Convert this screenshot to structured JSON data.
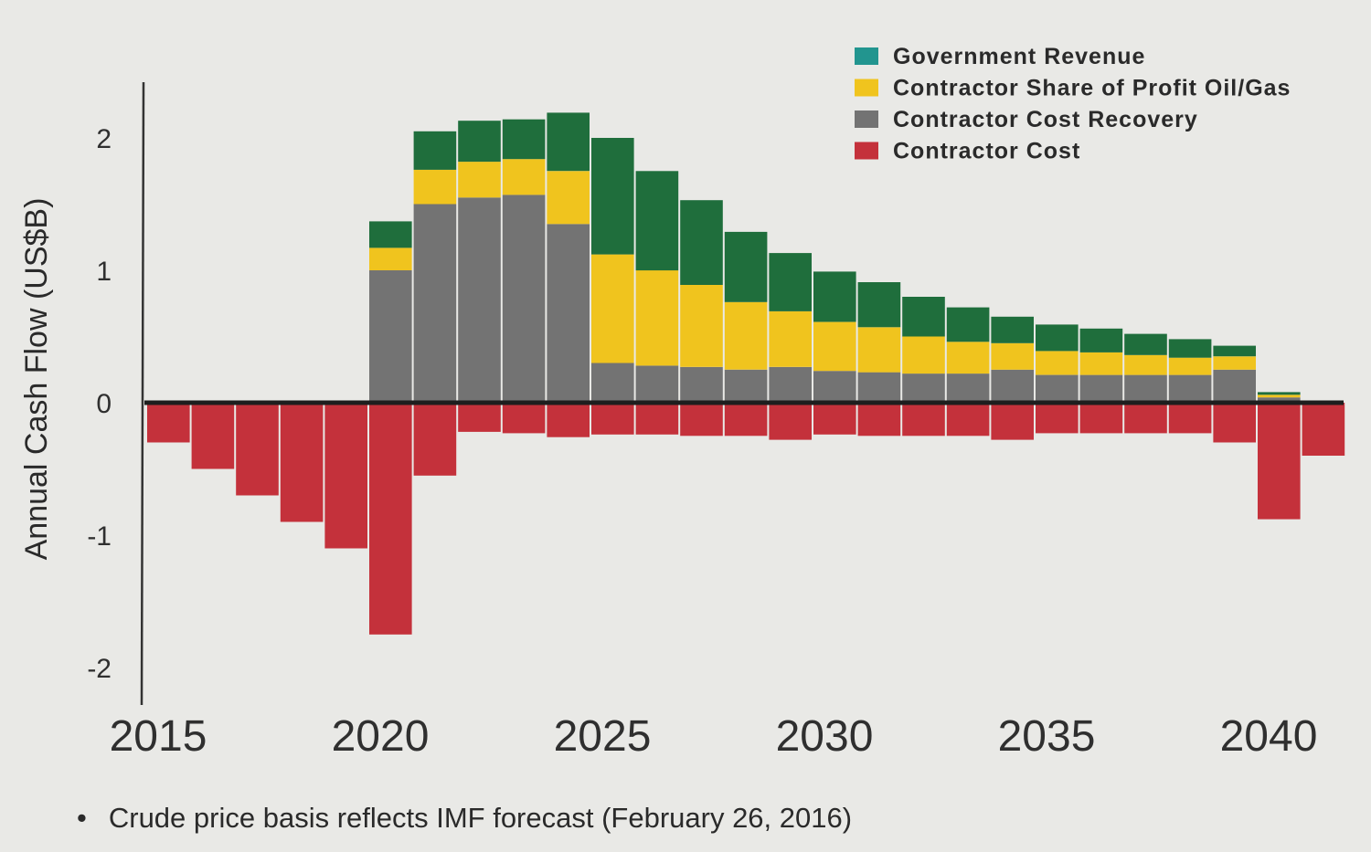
{
  "footnote": {
    "bullet": "•",
    "text": "Crude price basis reflects IMF forecast (February 26, 2016)"
  },
  "colors": {
    "Government Revenue": "#1f6e3c",
    "Contractor Share of Profit Oil/Gas": "#f0c41e",
    "Contractor Cost Recovery": "#737373",
    "Contractor Cost": "#c4313b",
    "legend_government_swatch": "#22958f"
  },
  "chart_data": {
    "type": "bar",
    "stacked": true,
    "title": "",
    "ylabel": "Annual Cash Flow (US$B)",
    "xlabel": "",
    "ylim": [
      -2.2,
      2.4
    ],
    "yticks": [
      "-2",
      "-1",
      "0",
      "1",
      "2"
    ],
    "xticks": [
      "2015",
      "2020",
      "2025",
      "2030",
      "2035",
      "2040"
    ],
    "legend_position": "top-right",
    "grid": false,
    "categories": [
      2015,
      2016,
      2017,
      2018,
      2019,
      2020,
      2021,
      2022,
      2023,
      2024,
      2025,
      2026,
      2027,
      2028,
      2029,
      2030,
      2031,
      2032,
      2033,
      2034,
      2035,
      2036,
      2037,
      2038,
      2039,
      2040,
      2041
    ],
    "series": [
      {
        "name": "Contractor Cost Recovery",
        "values": [
          0,
          0,
          0,
          0,
          0,
          1.0,
          1.5,
          1.55,
          1.57,
          1.35,
          0.3,
          0.28,
          0.27,
          0.25,
          0.27,
          0.24,
          0.23,
          0.22,
          0.22,
          0.25,
          0.21,
          0.21,
          0.21,
          0.21,
          0.25,
          0.04,
          0
        ]
      },
      {
        "name": "Contractor Share of Profit Oil/Gas",
        "values": [
          0,
          0,
          0,
          0,
          0,
          0.17,
          0.26,
          0.27,
          0.27,
          0.4,
          0.82,
          0.72,
          0.62,
          0.51,
          0.42,
          0.37,
          0.34,
          0.28,
          0.24,
          0.2,
          0.18,
          0.17,
          0.15,
          0.13,
          0.1,
          0.02,
          0
        ]
      },
      {
        "name": "Government Revenue",
        "values": [
          0,
          0,
          0,
          0,
          0,
          0.2,
          0.29,
          0.31,
          0.3,
          0.44,
          0.88,
          0.75,
          0.64,
          0.53,
          0.44,
          0.38,
          0.34,
          0.3,
          0.26,
          0.2,
          0.2,
          0.18,
          0.16,
          0.14,
          0.08,
          0.02,
          0
        ]
      },
      {
        "name": "Contractor Cost",
        "values": [
          -0.3,
          -0.5,
          -0.7,
          -0.9,
          -1.1,
          -1.75,
          -0.55,
          -0.22,
          -0.23,
          -0.26,
          -0.24,
          -0.24,
          -0.25,
          -0.25,
          -0.28,
          -0.24,
          -0.25,
          -0.25,
          -0.25,
          -0.28,
          -0.23,
          -0.23,
          -0.23,
          -0.23,
          -0.3,
          -0.88,
          -0.4
        ]
      }
    ],
    "legend": [
      "Government Revenue",
      "Contractor Share of Profit Oil/Gas",
      "Contractor Cost Recovery",
      "Contractor Cost"
    ]
  }
}
